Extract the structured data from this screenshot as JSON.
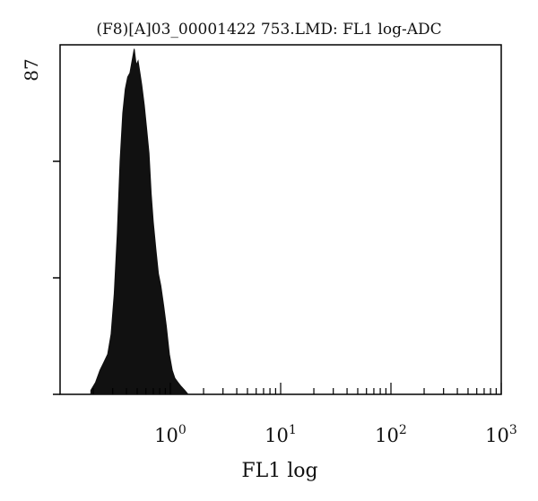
{
  "chart_data": {
    "type": "area",
    "title": "(F8)[A]03_00001422 753.LMD: FL1 log-ADC",
    "xlabel": "FL1 log",
    "ylabel": "",
    "x_scale": "log",
    "xlim": [
      0.1,
      1000
    ],
    "ylim": [
      0,
      87
    ],
    "y_max_label": "87",
    "x_ticks": [
      {
        "value": 1,
        "base": "10",
        "exp": "0"
      },
      {
        "value": 10,
        "base": "10",
        "exp": "1"
      },
      {
        "value": 100,
        "base": "10",
        "exp": "2"
      },
      {
        "value": 1000,
        "base": "10",
        "exp": "3"
      }
    ],
    "series": [
      {
        "x": [
          0.19,
          0.21,
          0.23,
          0.25,
          0.27,
          0.29,
          0.31,
          0.33,
          0.35,
          0.37,
          0.39,
          0.41,
          0.43,
          0.45,
          0.47,
          0.49,
          0.51,
          0.53,
          0.55,
          0.58,
          0.61,
          0.64,
          0.67,
          0.7,
          0.74,
          0.78,
          0.82,
          0.87,
          0.92,
          0.98,
          1.04,
          1.1,
          1.17,
          1.25,
          1.35,
          1.45
        ],
        "y": [
          1,
          3,
          6,
          8,
          10,
          15,
          25,
          40,
          58,
          70,
          76,
          79,
          80,
          83,
          86,
          82,
          83,
          80,
          77,
          72,
          66,
          60,
          50,
          43,
          36,
          30,
          27,
          22,
          17,
          10,
          6,
          4,
          3,
          2,
          1,
          0
        ]
      }
    ],
    "colors": {
      "fill": "#111111",
      "axis": "#000000",
      "text": "#111111"
    }
  }
}
